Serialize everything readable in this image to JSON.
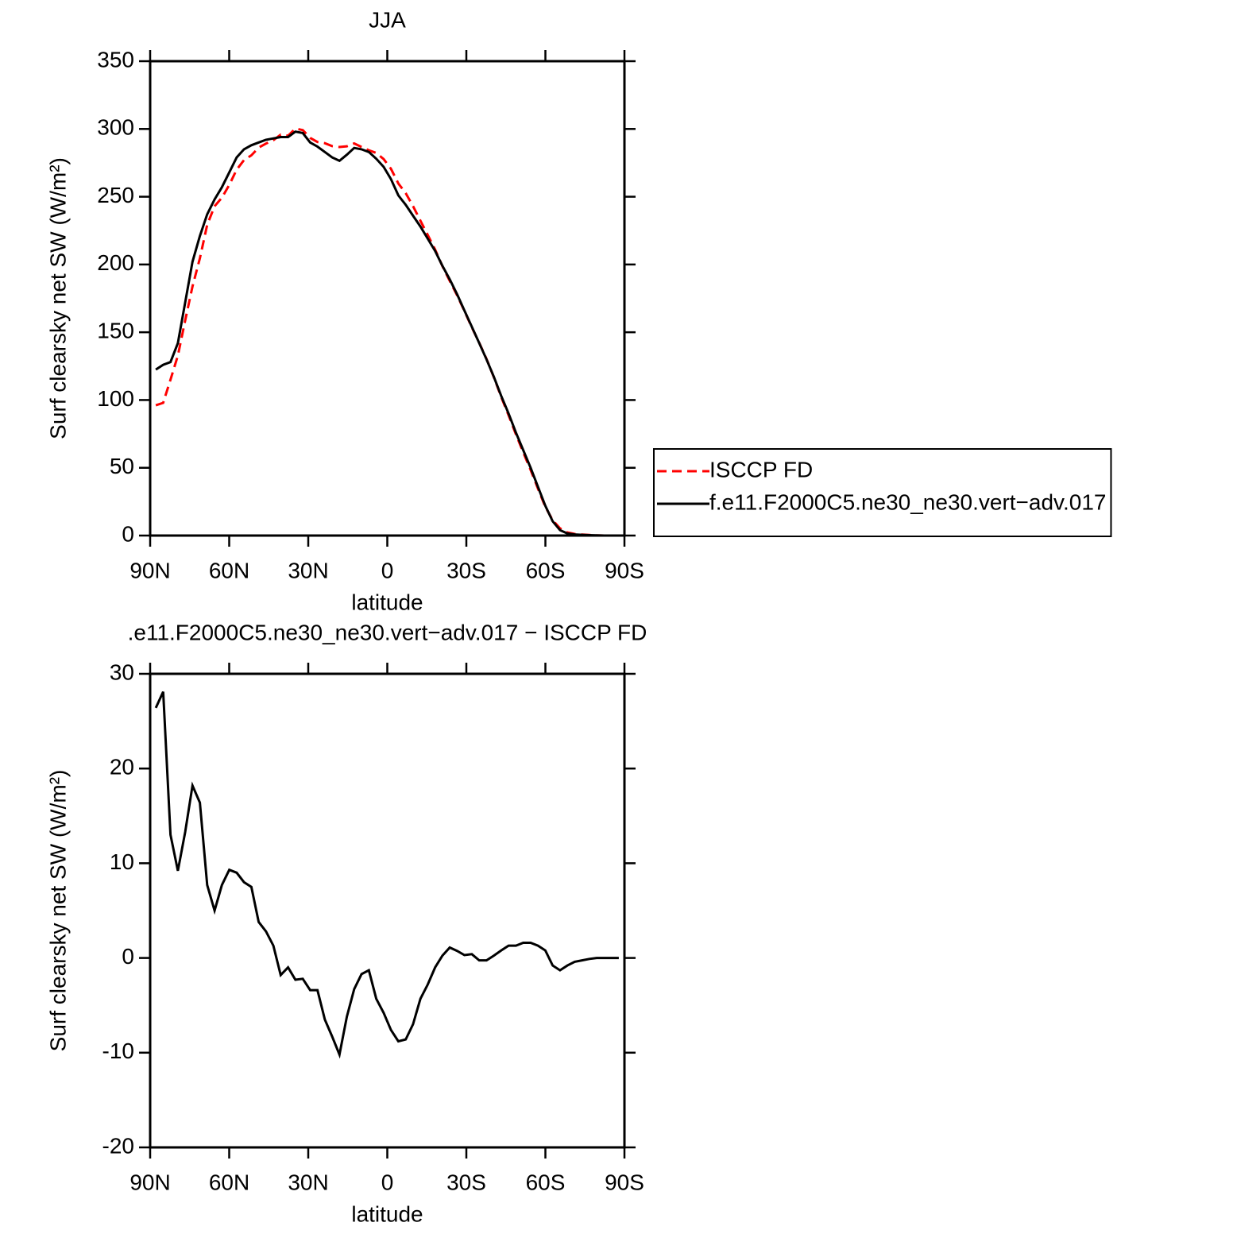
{
  "chart_data": [
    {
      "type": "line",
      "title": "JJA",
      "xlabel": "latitude",
      "ylabel": "Surf clearsky net SW (W/m²)",
      "x": [
        87.86,
        85.07,
        82.28,
        79.49,
        76.7,
        73.92,
        71.13,
        68.34,
        65.55,
        62.76,
        59.97,
        57.18,
        54.39,
        51.6,
        48.81,
        46.03,
        43.24,
        40.45,
        37.66,
        34.87,
        32.08,
        29.29,
        26.5,
        23.71,
        20.92,
        18.14,
        15.35,
        12.56,
        9.77,
        6.98,
        4.19,
        1.4,
        -1.4,
        -4.19,
        -6.98,
        -9.77,
        -12.56,
        -15.35,
        -18.14,
        -20.92,
        -23.71,
        -26.5,
        -29.29,
        -32.08,
        -34.87,
        -37.66,
        -40.45,
        -43.24,
        -46.03,
        -48.81,
        -51.6,
        -54.39,
        -57.18,
        -59.97,
        -62.76,
        -65.55,
        -68.34,
        -71.13,
        -73.92,
        -76.7,
        -79.49,
        -82.28,
        -85.07,
        -87.86
      ],
      "xlim": [
        90,
        -90
      ],
      "xticks": [
        {
          "value": 90,
          "label": "90N"
        },
        {
          "value": 60,
          "label": "60N"
        },
        {
          "value": 30,
          "label": "30N"
        },
        0,
        {
          "value": -30,
          "label": "30S"
        },
        {
          "value": -60,
          "label": "60S"
        },
        {
          "value": -90,
          "label": "90S"
        }
      ],
      "ylim": [
        0,
        350
      ],
      "yticks": [
        0,
        50,
        100,
        150,
        200,
        250,
        300,
        350
      ],
      "legend": "right",
      "series": [
        {
          "name": "ISCCP FD",
          "color": "#ff0000",
          "dash": true,
          "values": [
            96.1,
            97.9,
            115,
            132.8,
            158.7,
            183.8,
            204.6,
            229.3,
            243,
            249.3,
            258.7,
            270,
            277,
            280.5,
            286.2,
            289.2,
            291.7,
            295.8,
            295,
            300.3,
            299.2,
            293.4,
            290.4,
            289.5,
            287.3,
            286.7,
            287.2,
            289.3,
            286.7,
            284.3,
            282.3,
            277.8,
            270.6,
            259.8,
            252.6,
            243,
            232.3,
            221.8,
            211,
            198.75,
            187.9,
            177.25,
            165.7,
            153.6,
            142.25,
            130.25,
            116.75,
            102.2,
            88.7,
            74.7,
            61.4,
            48.4,
            34.7,
            21.2,
            11.3,
            5.3,
            2.3,
            1.2,
            0.75,
            0.4,
            0.1,
            0,
            0,
            0
          ]
        },
        {
          "name": "f.e11.F2000C5.ne30_ne30.vert−adv.017",
          "color": "#000000",
          "dash": false,
          "values": [
            122.5,
            126,
            128,
            142,
            172,
            202,
            221,
            237,
            248,
            257,
            268,
            279,
            285,
            288,
            290,
            292,
            293,
            294,
            294,
            298,
            297,
            290,
            287,
            283,
            279,
            276.5,
            281,
            286,
            285,
            283,
            278,
            272,
            263,
            251,
            244,
            236,
            228,
            219,
            210,
            199,
            189,
            178,
            166,
            154,
            142,
            130,
            117,
            103,
            90,
            76,
            63,
            50,
            36,
            22,
            10.5,
            4,
            1.5,
            0.8,
            0.5,
            0.3,
            0.1,
            0,
            0,
            0
          ]
        }
      ]
    },
    {
      "type": "line",
      "title": ".e11.F2000C5.ne30_ne30.vert−adv.017 − ISCCP FD",
      "xlabel": "latitude",
      "ylabel": "Surf clearsky net SW (W/m²)",
      "x": [
        87.86,
        85.07,
        82.28,
        79.49,
        76.7,
        73.92,
        71.13,
        68.34,
        65.55,
        62.76,
        59.97,
        57.18,
        54.39,
        51.6,
        48.81,
        46.03,
        43.24,
        40.45,
        37.66,
        34.87,
        32.08,
        29.29,
        26.5,
        23.71,
        20.92,
        18.14,
        15.35,
        12.56,
        9.77,
        6.98,
        4.19,
        1.4,
        -1.4,
        -4.19,
        -6.98,
        -9.77,
        -12.56,
        -15.35,
        -18.14,
        -20.92,
        -23.71,
        -26.5,
        -29.29,
        -32.08,
        -34.87,
        -37.66,
        -40.45,
        -43.24,
        -46.03,
        -48.81,
        -51.6,
        -54.39,
        -57.18,
        -59.97,
        -62.76,
        -65.55,
        -68.34,
        -71.13,
        -73.92,
        -76.7,
        -79.49,
        -82.28,
        -85.07,
        -87.86
      ],
      "xlim": [
        90,
        -90
      ],
      "xticks": [
        {
          "value": 90,
          "label": "90N"
        },
        {
          "value": 60,
          "label": "60N"
        },
        {
          "value": 30,
          "label": "30N"
        },
        0,
        {
          "value": -30,
          "label": "30S"
        },
        {
          "value": -60,
          "label": "60S"
        },
        {
          "value": -90,
          "label": "90S"
        }
      ],
      "ylim": [
        -20,
        30
      ],
      "yticks": [
        -20,
        -10,
        0,
        10,
        20,
        30
      ],
      "series": [
        {
          "color": "#000000",
          "dash": false,
          "values": [
            26.4,
            28.1,
            13,
            9.2,
            13.3,
            18.2,
            16.4,
            7.7,
            5,
            7.7,
            9.3,
            9,
            8,
            7.5,
            3.8,
            2.8,
            1.3,
            -1.8,
            -1,
            -2.3,
            -2.2,
            -3.4,
            -3.4,
            -6.5,
            -8.3,
            -10.2,
            -6.2,
            -3.3,
            -1.7,
            -1.3,
            -4.3,
            -5.8,
            -7.6,
            -8.8,
            -8.6,
            -7,
            -4.3,
            -2.8,
            -1,
            0.25,
            1.1,
            0.75,
            0.3,
            0.4,
            -0.25,
            -0.25,
            0.25,
            0.8,
            1.3,
            1.3,
            1.6,
            1.6,
            1.3,
            0.8,
            -0.8,
            -1.3,
            -0.8,
            -0.4,
            -0.25,
            -0.1,
            0,
            0,
            0,
            0
          ]
        }
      ]
    }
  ]
}
